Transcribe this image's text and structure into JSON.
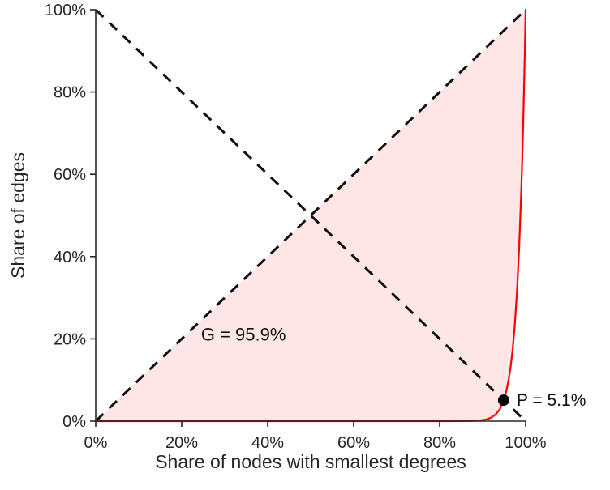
{
  "chart_data": {
    "type": "area",
    "title": "",
    "xlabel": "Share of nodes with smallest degrees",
    "ylabel": "Share of edges",
    "xlim": [
      0,
      100
    ],
    "ylim": [
      0,
      100
    ],
    "grid": false,
    "legend": "none",
    "axis_ticks": {
      "values": [
        0,
        20,
        40,
        60,
        80,
        100
      ],
      "labels": [
        "0%",
        "20%",
        "40%",
        "60%",
        "80%",
        "100%"
      ]
    },
    "reference_lines": [
      {
        "name": "equality-diagonal",
        "from": [
          0,
          0
        ],
        "to": [
          100,
          100
        ],
        "style": "dashed",
        "color": "#111111",
        "width": 3
      },
      {
        "name": "anti-diagonal",
        "from": [
          0,
          100
        ],
        "to": [
          100,
          0
        ],
        "style": "dashed",
        "color": "#111111",
        "width": 3
      }
    ],
    "series": [
      {
        "name": "lorenz-curve",
        "color": "#ff0000",
        "width": 2.2,
        "points": [
          [
            0,
            0
          ],
          [
            5,
            0
          ],
          [
            10,
            0
          ],
          [
            15,
            0
          ],
          [
            20,
            0
          ],
          [
            25,
            0
          ],
          [
            30,
            0
          ],
          [
            35,
            0
          ],
          [
            40,
            0
          ],
          [
            45,
            0
          ],
          [
            50,
            0
          ],
          [
            55,
            0
          ],
          [
            60,
            0
          ],
          [
            65,
            0
          ],
          [
            70,
            0
          ],
          [
            75,
            0
          ],
          [
            80,
            0
          ],
          [
            82,
            0
          ],
          [
            84,
            0.01
          ],
          [
            86,
            0.03
          ],
          [
            88,
            0.07
          ],
          [
            89,
            0.13
          ],
          [
            90,
            0.25
          ],
          [
            91,
            0.46
          ],
          [
            92,
            0.86
          ],
          [
            93,
            1.6
          ],
          [
            94,
            2.9
          ],
          [
            94.9,
            5.1
          ],
          [
            95.5,
            7.3
          ],
          [
            96,
            9.8
          ],
          [
            96.5,
            13.1
          ],
          [
            97,
            17.6
          ],
          [
            97.5,
            23.6
          ],
          [
            98,
            31.6
          ],
          [
            98.5,
            42.3
          ],
          [
            99,
            56.4
          ],
          [
            99.2,
            63.3
          ],
          [
            99.4,
            71.0
          ],
          [
            99.6,
            79.6
          ],
          [
            99.8,
            89.2
          ],
          [
            99.9,
            94.5
          ],
          [
            99.95,
            97.2
          ],
          [
            100,
            100
          ]
        ]
      }
    ],
    "shaded_area": {
      "name": "gini-area",
      "between": [
        "equality-diagonal",
        "lorenz-curve"
      ],
      "fill": "#ffe6e6"
    },
    "marker": {
      "name": "P",
      "x": 94.9,
      "y": 5.1,
      "radius": 7,
      "color": "#000000"
    },
    "annotations": [
      {
        "id": "gini-label",
        "text": "G = 95.9%",
        "x": 24.5,
        "y": 21,
        "dx": 0,
        "font_size": 22
      },
      {
        "id": "p-label",
        "text": "P = 5.1%",
        "x": 94.9,
        "y": 5.1,
        "dx": 16,
        "font_size": 21
      }
    ],
    "values": {
      "gini": "95.9%",
      "p_share": "5.1%"
    },
    "colors": {
      "axis": "#262626",
      "text": "#262626",
      "annotation": "#111111",
      "background": "#ffffff"
    }
  }
}
